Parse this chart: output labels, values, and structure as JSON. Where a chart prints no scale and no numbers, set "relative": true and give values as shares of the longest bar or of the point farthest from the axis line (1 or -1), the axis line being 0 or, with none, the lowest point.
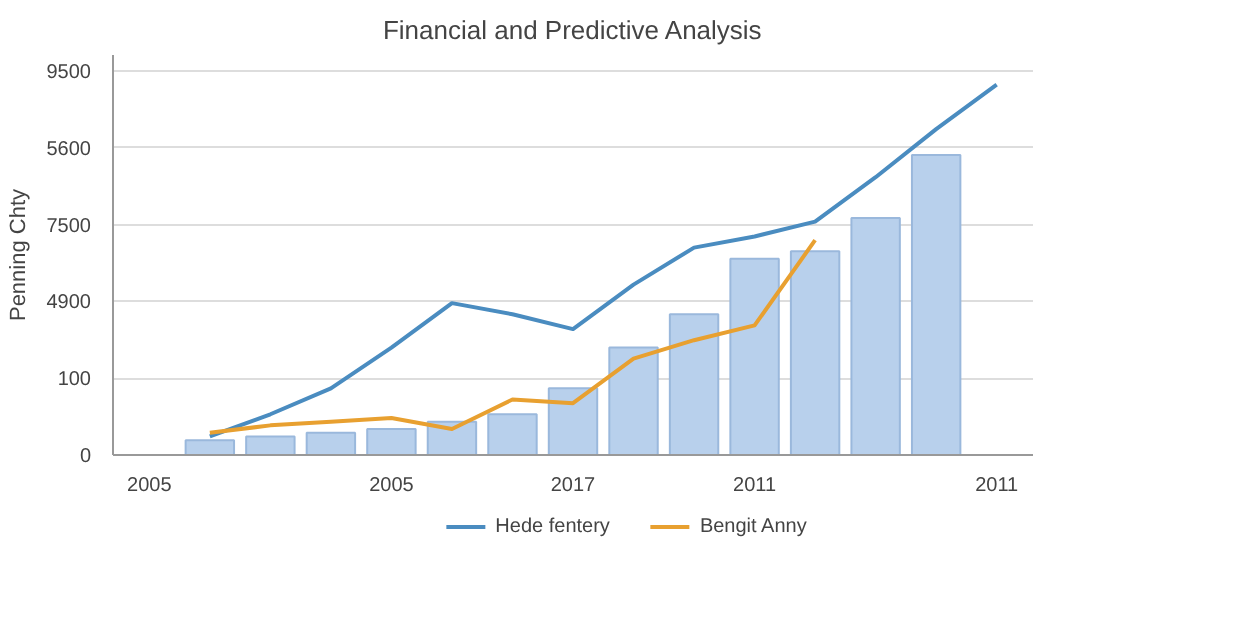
{
  "chart_data": {
    "type": "bar",
    "title": "Financial and Predictive Analysis",
    "ylabel": "Penning Chty",
    "relative": true,
    "categories": [
      "2005",
      null,
      null,
      null,
      "2005",
      null,
      null,
      "2017",
      null,
      null,
      "2011",
      null,
      null,
      null,
      "2011"
    ],
    "annotations": [
      "0",
      "100",
      "4900",
      "7500",
      "5600",
      "9500"
    ],
    "grid": "y",
    "legend": "bottom",
    "series": [
      {
        "color": "#b8d0ec",
        "values": [
          null,
          0.04,
          0.05,
          0.06,
          0.07,
          0.09,
          0.11,
          0.18,
          0.29,
          0.38,
          0.53,
          0.55,
          0.64,
          0.81,
          null
        ]
      },
      {
        "type": "line",
        "name": "Hede fentery",
        "color": "#4a8cc0",
        "values": [
          null,
          0.05,
          0.11,
          0.18,
          0.29,
          0.41,
          0.38,
          0.34,
          0.46,
          0.56,
          0.59,
          0.63,
          0.75,
          0.88,
          1.0
        ]
      },
      {
        "type": "line",
        "name": "Bengit Anny",
        "color": "#e8a030",
        "values": [
          null,
          0.06,
          0.08,
          0.09,
          0.1,
          0.07,
          0.15,
          0.14,
          0.26,
          0.31,
          0.35,
          0.58,
          null,
          null,
          null
        ]
      }
    ]
  }
}
